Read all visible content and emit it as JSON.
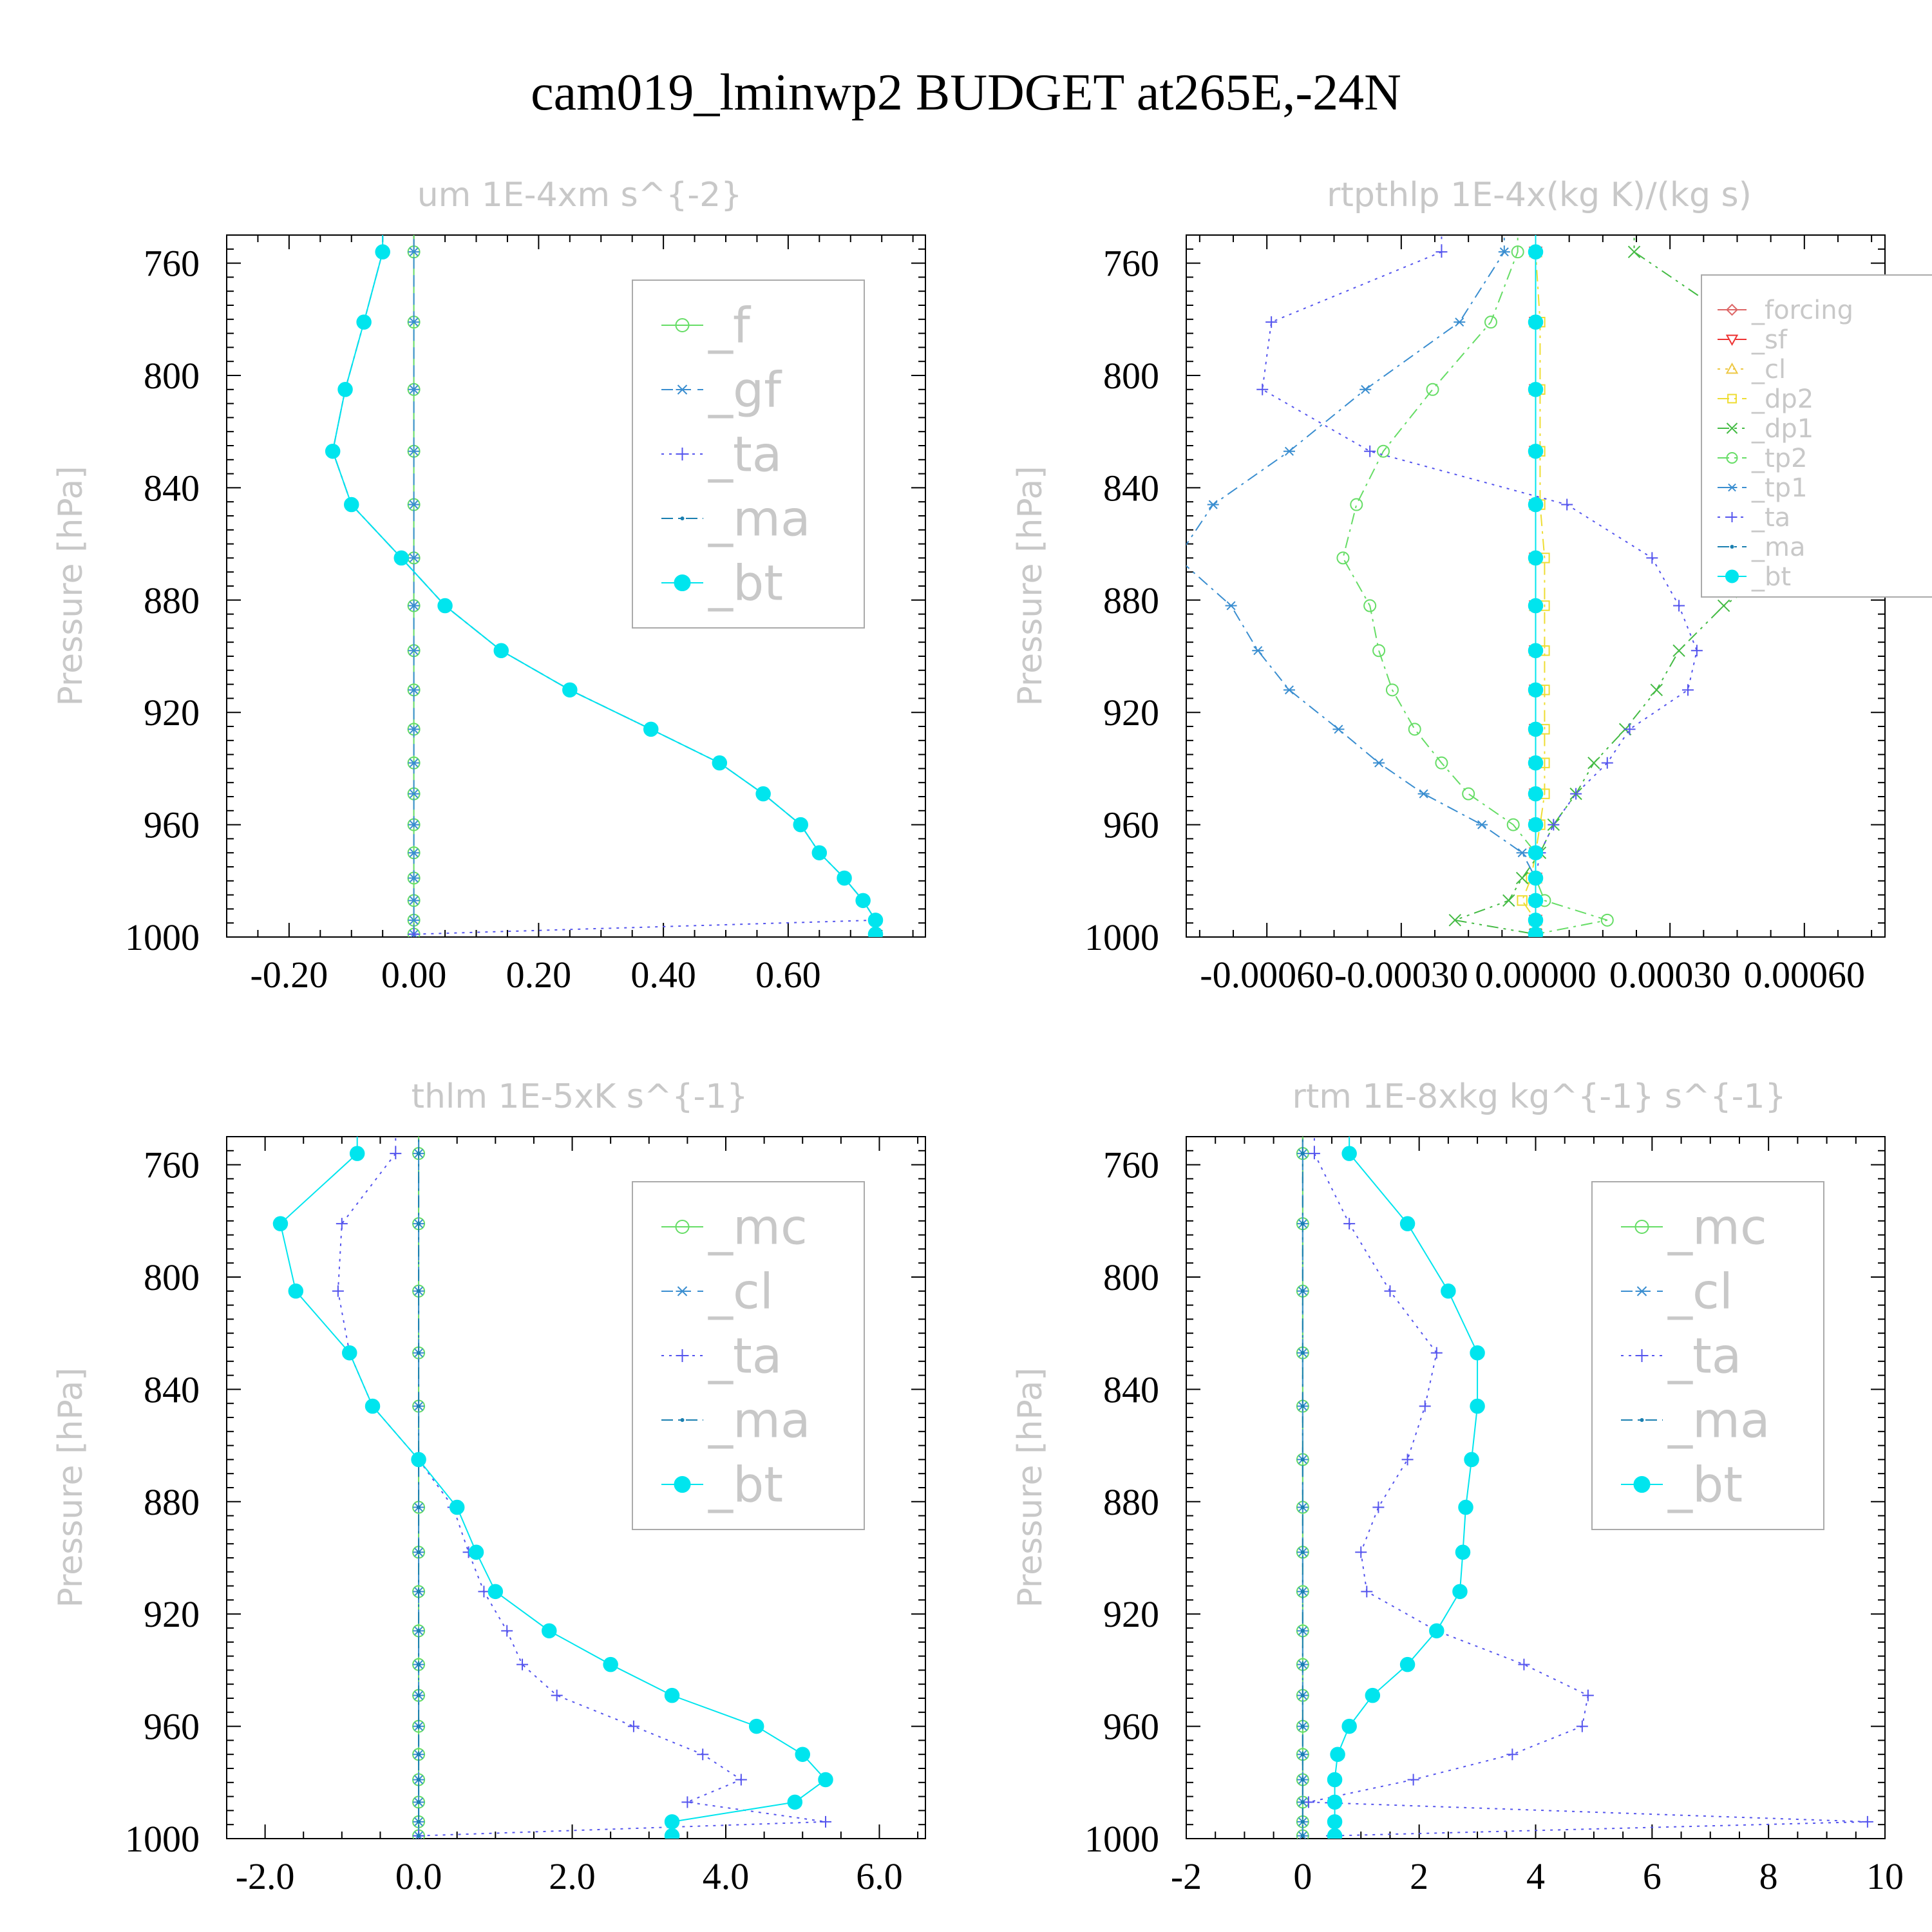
{
  "figure_title": "cam019_lminwp2  BUDGET at265E,-24N",
  "colors": {
    "f": "#66dd66",
    "gf": "#3a8ed0",
    "ta": "#5555ee",
    "ma": "#1a7fb0",
    "bt": "#00e5ee",
    "mc": "#66dd66",
    "cl_dash": "#3a8ed0",
    "forcing": "#dd6666",
    "sf": "#ee3333",
    "cl": "#eec844",
    "dp2": "#eedd33",
    "dp1": "#44bb44",
    "tp2": "#66dd66",
    "tp1": "#3a8ed0"
  },
  "chart_data": [
    {
      "type": "line",
      "title": "um   1E-4xm s^{-2}",
      "ylabel": "Pressure [hPa]",
      "xlim": [
        -0.3,
        0.82
      ],
      "ylim": [
        1000,
        750
      ],
      "xticks": [
        -0.2,
        0.0,
        0.2,
        0.4,
        0.6
      ],
      "xtick_labels": [
        "-0.20",
        "0.00",
        "0.20",
        "0.40",
        "0.60"
      ],
      "yticks": [
        760,
        800,
        840,
        880,
        920,
        960,
        1000
      ],
      "ytick_labels": [
        "760",
        "800",
        "840",
        "880",
        "920",
        "960",
        "1000"
      ],
      "legend_size": "large",
      "pressure": [
        756,
        781,
        805,
        827,
        846,
        865,
        882,
        898,
        912,
        926,
        938,
        949,
        960,
        970,
        979,
        987,
        994,
        999
      ],
      "series": [
        {
          "name": "_f",
          "key": "f",
          "marker": "circle-open",
          "dash": "solid",
          "values": [
            0,
            0,
            0,
            0,
            0,
            0,
            0,
            0,
            0,
            0,
            0,
            0,
            0,
            0,
            0,
            0,
            0,
            0
          ]
        },
        {
          "name": "_gf",
          "key": "gf",
          "marker": "star",
          "dash": "dash",
          "values": [
            0,
            0,
            0,
            0,
            0,
            0,
            0,
            0,
            0,
            0,
            0,
            0,
            0,
            0,
            0,
            0,
            0,
            0
          ]
        },
        {
          "name": "_ta",
          "key": "ta",
          "marker": "plus",
          "dash": "dot",
          "values": [
            -0.05,
            -0.08,
            -0.11,
            -0.13,
            -0.1,
            -0.02,
            0.05,
            0.14,
            0.25,
            0.38,
            0.49,
            0.56,
            0.62,
            0.65,
            0.69,
            0.72,
            0.74,
            0.0
          ]
        },
        {
          "name": "_ma",
          "key": "ma",
          "marker": "dot",
          "dash": "dashdot",
          "values": [
            -0.05,
            -0.08,
            -0.11,
            -0.13,
            -0.1,
            -0.02,
            0.05,
            0.14,
            0.25,
            0.38,
            0.49,
            0.56,
            0.62,
            0.65,
            0.69,
            0.72,
            0.74,
            0.74
          ]
        },
        {
          "name": "_bt",
          "key": "bt",
          "marker": "filled",
          "dash": "solid",
          "values": [
            -0.05,
            -0.08,
            -0.11,
            -0.13,
            -0.1,
            -0.02,
            0.05,
            0.14,
            0.25,
            0.38,
            0.49,
            0.56,
            0.62,
            0.65,
            0.69,
            0.72,
            0.74,
            0.74
          ]
        }
      ]
    },
    {
      "type": "line",
      "title": "rtpthlp   1E-4x(kg K)/(kg s)",
      "ylabel": "Pressure [hPa]",
      "xlim": [
        -0.00078,
        0.00078
      ],
      "ylim": [
        1000,
        750
      ],
      "xticks": [
        -0.0006,
        -0.0003,
        0.0,
        0.0003,
        0.0006
      ],
      "xtick_labels": [
        "-0.00060",
        "-0.00030",
        "0.00000",
        "0.00030",
        "0.00060"
      ],
      "yticks": [
        760,
        800,
        840,
        880,
        920,
        960,
        1000
      ],
      "ytick_labels": [
        "760",
        "800",
        "840",
        "880",
        "920",
        "960",
        "1000"
      ],
      "legend_size": "small",
      "pressure": [
        756,
        781,
        805,
        827,
        846,
        865,
        882,
        898,
        912,
        926,
        938,
        949,
        960,
        970,
        979,
        987,
        994,
        999
      ],
      "series": [
        {
          "name": "_forcing",
          "key": "forcing",
          "marker": "diamond",
          "dash": "solid",
          "values": [
            0,
            0,
            0,
            0,
            0,
            0,
            0,
            0,
            0,
            0,
            0,
            0,
            0,
            0,
            0,
            0,
            0,
            0
          ]
        },
        {
          "name": "_sf",
          "key": "sf",
          "marker": "triangle-down",
          "dash": "dash",
          "values": [
            0,
            0,
            0,
            0,
            0,
            0,
            0,
            0,
            0,
            0,
            0,
            0,
            0,
            0,
            0,
            0,
            0,
            0
          ]
        },
        {
          "name": "_cl",
          "key": "cl",
          "marker": "triangle",
          "dash": "dot",
          "values": [
            0,
            0,
            0,
            0,
            0,
            0,
            0,
            0,
            0,
            0,
            0,
            0,
            0,
            0,
            0,
            0,
            0,
            0
          ]
        },
        {
          "name": "_dp2",
          "key": "dp2",
          "marker": "square",
          "dash": "dashdot",
          "values": [
            0,
            1e-05,
            1e-05,
            1e-05,
            1e-05,
            2e-05,
            2e-05,
            2e-05,
            2e-05,
            2e-05,
            2e-05,
            2e-05,
            1e-05,
            0,
            -1e-05,
            -3e-05,
            0,
            0
          ]
        },
        {
          "name": "_dp1",
          "key": "dp1",
          "marker": "x",
          "dash": "dashdotdot",
          "values": [
            0.00022,
            0.00045,
            0.00078,
            0.0009,
            0.00082,
            0.00058,
            0.00042,
            0.00032,
            0.00027,
            0.0002,
            0.00013,
            9e-05,
            4e-05,
            1e-05,
            -3e-05,
            -6e-05,
            -0.00018,
            0
          ]
        },
        {
          "name": "_tp2",
          "key": "tp2",
          "marker": "circle-open",
          "dash": "dashdot",
          "values": [
            -4e-05,
            -0.0001,
            -0.00023,
            -0.00034,
            -0.0004,
            -0.00043,
            -0.00037,
            -0.00035,
            -0.00032,
            -0.00027,
            -0.00021,
            -0.00015,
            -5e-05,
            0,
            0,
            2e-05,
            0.00016,
            0
          ]
        },
        {
          "name": "_tp1",
          "key": "tp1",
          "marker": "star",
          "dash": "dashdot",
          "values": [
            -7e-05,
            -0.00017,
            -0.00038,
            -0.00055,
            -0.00072,
            -0.0008,
            -0.00068,
            -0.00062,
            -0.00055,
            -0.00044,
            -0.00035,
            -0.00025,
            -0.00012,
            -3e-05,
            0,
            0,
            0,
            0
          ]
        },
        {
          "name": "_ta",
          "key": "ta",
          "marker": "plus",
          "dash": "dot",
          "values": [
            -0.00021,
            -0.00059,
            -0.00061,
            -0.00037,
            7e-05,
            0.00026,
            0.00032,
            0.00036,
            0.00034,
            0.00021,
            0.00016,
            9e-05,
            4e-05,
            1e-05,
            0,
            0,
            0,
            0
          ]
        },
        {
          "name": "_ma",
          "key": "ma",
          "marker": "dot",
          "dash": "dashdot",
          "values": [
            0,
            0,
            0,
            0,
            0,
            0,
            0,
            0,
            0,
            0,
            0,
            0,
            0,
            0,
            0,
            0,
            0,
            0
          ]
        },
        {
          "name": "_bt",
          "key": "bt",
          "marker": "filled",
          "dash": "solid",
          "values": [
            0,
            0,
            0,
            0,
            0,
            0,
            0,
            0,
            0,
            0,
            0,
            0,
            0,
            0,
            0,
            0,
            0,
            0
          ]
        }
      ]
    },
    {
      "type": "line",
      "title": "thlm   1E-5xK s^{-1}",
      "ylabel": "Pressure [hPa]",
      "xlim": [
        -2.5,
        6.6
      ],
      "ylim": [
        1000,
        750
      ],
      "xticks": [
        -2.0,
        0.0,
        2.0,
        4.0,
        6.0
      ],
      "xtick_labels": [
        "-2.0",
        "0.0",
        "2.0",
        "4.0",
        "6.0"
      ],
      "yticks": [
        760,
        800,
        840,
        880,
        920,
        960,
        1000
      ],
      "ytick_labels": [
        "760",
        "800",
        "840",
        "880",
        "920",
        "960",
        "1000"
      ],
      "legend_size": "large",
      "pressure": [
        756,
        781,
        805,
        827,
        846,
        865,
        882,
        898,
        912,
        926,
        938,
        949,
        960,
        970,
        979,
        987,
        994,
        999
      ],
      "series": [
        {
          "name": "_mc",
          "key": "mc",
          "marker": "circle-open",
          "dash": "solid",
          "values": [
            0,
            0,
            0,
            0,
            0,
            0,
            0,
            0,
            0,
            0,
            0,
            0,
            0,
            0,
            0,
            0,
            0,
            0
          ]
        },
        {
          "name": "_cl",
          "key": "cl_dash",
          "marker": "star",
          "dash": "dash",
          "values": [
            0,
            0,
            0,
            0,
            0,
            0,
            0,
            0,
            0,
            0,
            0,
            0,
            0,
            0,
            0,
            0,
            0,
            0
          ]
        },
        {
          "name": "_ta",
          "key": "ta",
          "marker": "plus",
          "dash": "dot",
          "values": [
            -0.3,
            -1.0,
            -1.05,
            -0.9,
            -0.6,
            0.0,
            0.45,
            0.65,
            0.85,
            1.15,
            1.35,
            1.8,
            2.8,
            3.7,
            4.2,
            3.5,
            5.3,
            0.0
          ]
        },
        {
          "name": "_ma",
          "key": "ma",
          "marker": "dot",
          "dash": "dashdot",
          "values": [
            0,
            0,
            0,
            0,
            0,
            0,
            0,
            0,
            0,
            0,
            0,
            0,
            0,
            0,
            0,
            0,
            0,
            0
          ]
        },
        {
          "name": "_bt",
          "key": "bt",
          "marker": "filled",
          "dash": "solid",
          "values": [
            -0.8,
            -1.8,
            -1.6,
            -0.9,
            -0.6,
            0.0,
            0.5,
            0.75,
            1.0,
            1.7,
            2.5,
            3.3,
            4.4,
            5.0,
            5.3,
            4.9,
            3.3,
            3.3
          ]
        }
      ]
    },
    {
      "type": "line",
      "title": "rtm   1E-8xkg kg^{-1} s^{-1}",
      "ylabel": "Pressure [hPa]",
      "xlim": [
        -2,
        10
      ],
      "ylim": [
        1000,
        750
      ],
      "xticks": [
        -2,
        0,
        2,
        4,
        6,
        8,
        10
      ],
      "xtick_labels": [
        "-2",
        "0",
        "2",
        "4",
        "6",
        "8",
        "10"
      ],
      "yticks": [
        760,
        800,
        840,
        880,
        920,
        960,
        1000
      ],
      "ytick_labels": [
        "760",
        "800",
        "840",
        "880",
        "920",
        "960",
        "1000"
      ],
      "legend_size": "large",
      "pressure": [
        756,
        781,
        805,
        827,
        846,
        865,
        882,
        898,
        912,
        926,
        938,
        949,
        960,
        970,
        979,
        987,
        994,
        999
      ],
      "series": [
        {
          "name": "_mc",
          "key": "mc",
          "marker": "circle-open",
          "dash": "solid",
          "values": [
            0,
            0,
            0,
            0,
            0,
            0,
            0,
            0,
            0,
            0,
            0,
            0,
            0,
            0,
            0,
            0,
            0,
            0
          ]
        },
        {
          "name": "_cl",
          "key": "cl_dash",
          "marker": "star",
          "dash": "dash",
          "values": [
            0,
            0,
            0,
            0,
            0,
            0,
            0,
            0,
            0,
            0,
            0,
            0,
            0,
            0,
            0,
            0,
            0,
            0
          ]
        },
        {
          "name": "_ta",
          "key": "ta",
          "marker": "plus",
          "dash": "dot",
          "values": [
            0.2,
            0.8,
            1.5,
            2.3,
            2.1,
            1.8,
            1.3,
            1.0,
            1.1,
            2.3,
            3.8,
            4.9,
            4.8,
            3.6,
            1.9,
            0.1,
            9.7,
            0.5
          ]
        },
        {
          "name": "_ma",
          "key": "ma",
          "marker": "dot",
          "dash": "dashdot",
          "values": [
            0,
            0,
            0,
            0,
            0,
            0,
            0,
            0,
            0,
            0,
            0,
            0,
            0,
            0,
            0,
            0,
            0,
            0
          ]
        },
        {
          "name": "_bt",
          "key": "bt",
          "marker": "filled",
          "dash": "solid",
          "values": [
            0.8,
            1.8,
            2.5,
            3.0,
            3.0,
            2.9,
            2.8,
            2.75,
            2.7,
            2.3,
            1.8,
            1.2,
            0.8,
            0.6,
            0.55,
            0.55,
            0.55,
            0.55
          ]
        }
      ]
    }
  ]
}
